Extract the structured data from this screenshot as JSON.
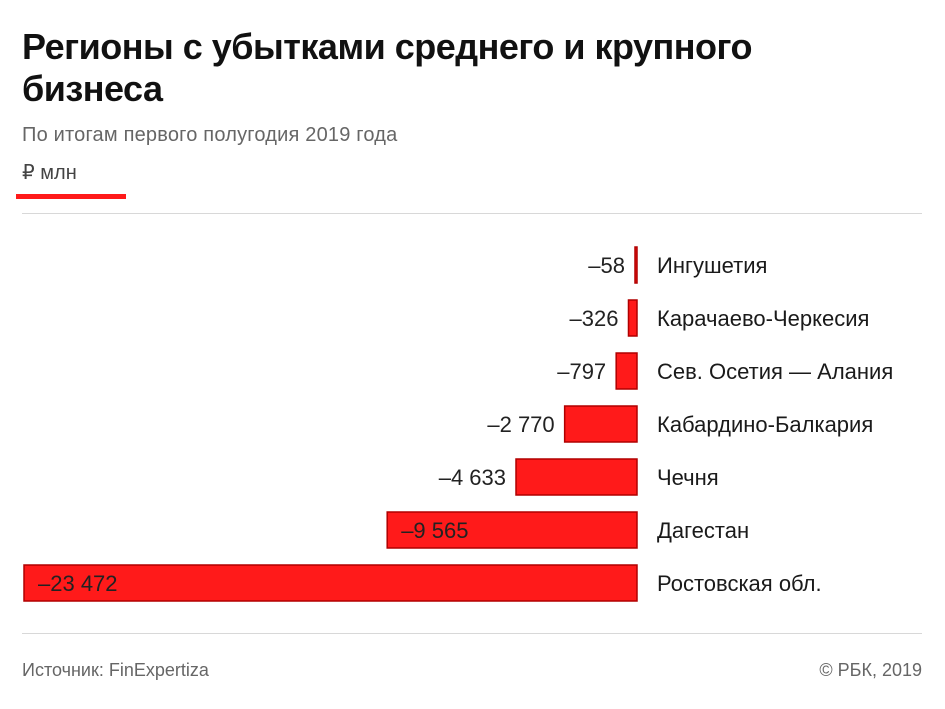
{
  "header": {
    "title": "Регионы с убытками среднего и крупного бизнеса",
    "subtitle": "По итогам первого полугодия 2019 года",
    "unit": "₽ млн"
  },
  "footer": {
    "source": "Источник: FinExpertiza",
    "copyright": "© РБК, 2019"
  },
  "colors": {
    "bar": "#ff1a1a",
    "bar_edge": "#b00000",
    "accent": "#ff1a1a",
    "text": "#1a1a1a"
  },
  "chart_data": {
    "type": "bar",
    "orientation": "horizontal",
    "title": "Регионы с убытками среднего и крупного бизнеса",
    "subtitle": "По итогам первого полугодия 2019 года",
    "unit": "₽ млн",
    "categories": [
      "Ингушетия",
      "Карачаево-Черкесия",
      "Сев. Осетия — Алания",
      "Кабардино-Балкария",
      "Чечня",
      "Дагестан",
      "Ростовская обл."
    ],
    "values": [
      -58,
      -326,
      -797,
      -2770,
      -4633,
      -9565,
      -23472
    ],
    "value_labels": [
      "–58",
      "–326",
      "–797",
      "–2 770",
      "–4 633",
      "–9 565",
      "–23 472"
    ],
    "xlim": [
      -23472,
      0
    ],
    "grid": false,
    "legend": "none"
  }
}
